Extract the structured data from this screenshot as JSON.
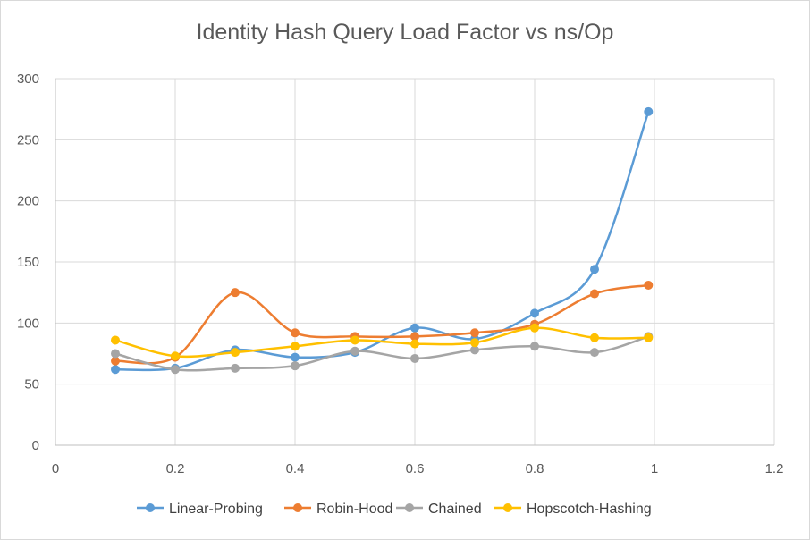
{
  "chart_data": {
    "type": "scatter",
    "title": "Identity Hash Query Load Factor vs ns/Op",
    "xlabel": "",
    "ylabel": "",
    "xlim": [
      0,
      1.2
    ],
    "ylim": [
      0,
      300
    ],
    "x_ticks": [
      "0",
      "0.2",
      "0.4",
      "0.6",
      "0.8",
      "1",
      "1.2"
    ],
    "y_ticks": [
      "0",
      "50",
      "100",
      "150",
      "200",
      "250",
      "300"
    ],
    "x_tick_values": [
      0,
      0.2,
      0.4,
      0.6,
      0.8,
      1,
      1.2
    ],
    "y_tick_values": [
      0,
      50,
      100,
      150,
      200,
      250,
      300
    ],
    "grid": true,
    "smooth_lines": true,
    "legend_position": "bottom",
    "x": [
      0.1,
      0.2,
      0.3,
      0.4,
      0.5,
      0.6,
      0.7,
      0.8,
      0.9,
      0.99
    ],
    "series": [
      {
        "name": "Linear-Probing",
        "color": "#5B9BD5",
        "values": [
          62,
          63,
          78,
          72,
          76,
          96,
          87,
          108,
          144,
          273
        ]
      },
      {
        "name": "Robin-Hood",
        "color": "#ED7D31",
        "values": [
          69,
          72,
          125,
          92,
          89,
          89,
          92,
          99,
          124,
          131
        ]
      },
      {
        "name": "Chained",
        "color": "#A5A5A5",
        "values": [
          75,
          62,
          63,
          65,
          77,
          71,
          78,
          81,
          76,
          89
        ]
      },
      {
        "name": "Hopscotch-Hashing",
        "color": "#FFC000",
        "values": [
          86,
          73,
          76,
          81,
          86,
          83,
          84,
          96,
          88,
          88
        ]
      }
    ]
  }
}
